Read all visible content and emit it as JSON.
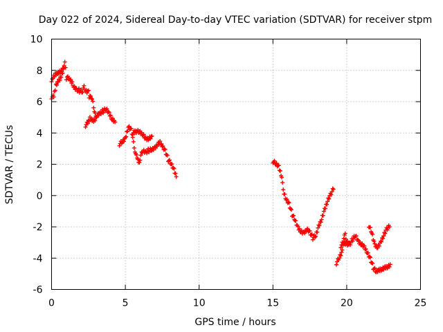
{
  "chart_data": {
    "type": "scatter",
    "title": "Day 022 of 2024, Sidereal Day-to-day VTEC variation (SDTVAR) for receiver stpm",
    "xlabel": "GPS time / hours",
    "ylabel": "SDTVAR / TECUs",
    "xlim": [
      0,
      25
    ],
    "ylim": [
      -6,
      10
    ],
    "xticks": [
      0,
      5,
      10,
      15,
      20,
      25
    ],
    "yticks": [
      -6,
      -4,
      -2,
      0,
      2,
      4,
      6,
      8,
      10
    ],
    "grid": true,
    "marker": "+",
    "color": "#ff0000",
    "series": [
      {
        "name": "segment-1",
        "path": [
          [
            0.0,
            6.3
          ],
          [
            0.15,
            6.3
          ],
          [
            0.3,
            7.0
          ],
          [
            0.45,
            7.3
          ],
          [
            0.6,
            7.5
          ],
          [
            0.75,
            7.9
          ],
          [
            0.9,
            8.5
          ],
          [
            0.95,
            8.3
          ],
          [
            1.0,
            7.4
          ],
          [
            1.1,
            7.5
          ],
          [
            1.25,
            7.4
          ],
          [
            1.4,
            7.2
          ],
          [
            1.5,
            7.0
          ],
          [
            1.7,
            6.8
          ],
          [
            1.9,
            6.7
          ],
          [
            2.1,
            6.6
          ],
          [
            2.2,
            6.9
          ],
          [
            2.3,
            6.7
          ],
          [
            2.45,
            6.6
          ],
          [
            2.5,
            6.8
          ],
          [
            2.55,
            6.2
          ],
          [
            2.6,
            6.5
          ],
          [
            2.7,
            6.2
          ],
          [
            2.8,
            5.9
          ],
          [
            2.9,
            5.4
          ],
          [
            3.0,
            5.0
          ],
          [
            3.1,
            5.2
          ],
          [
            3.3,
            5.3
          ],
          [
            3.5,
            5.4
          ],
          [
            3.7,
            5.5
          ],
          [
            3.9,
            5.2
          ],
          [
            4.1,
            4.9
          ],
          [
            4.3,
            4.7
          ]
        ]
      },
      {
        "name": "segment-2",
        "path": [
          [
            0.0,
            7.4
          ],
          [
            0.1,
            7.5
          ],
          [
            0.25,
            7.7
          ],
          [
            0.4,
            7.8
          ],
          [
            0.55,
            7.9
          ],
          [
            0.7,
            8.0
          ],
          [
            0.85,
            8.3
          ]
        ]
      },
      {
        "name": "segment-3",
        "path": [
          [
            2.3,
            4.5
          ],
          [
            2.45,
            4.6
          ],
          [
            2.6,
            4.9
          ],
          [
            2.75,
            4.8
          ],
          [
            2.9,
            4.8
          ],
          [
            3.05,
            5.0
          ]
        ]
      },
      {
        "name": "segment-4",
        "path": [
          [
            4.6,
            3.3
          ],
          [
            4.8,
            3.4
          ],
          [
            5.0,
            3.6
          ],
          [
            5.2,
            4.4
          ],
          [
            5.4,
            4.2
          ],
          [
            5.5,
            3.8
          ],
          [
            5.6,
            3.0
          ],
          [
            5.7,
            2.8
          ],
          [
            5.8,
            2.4
          ],
          [
            5.9,
            2.0
          ],
          [
            6.0,
            2.3
          ],
          [
            6.1,
            2.7
          ],
          [
            6.2,
            2.9
          ],
          [
            6.4,
            2.8
          ],
          [
            6.6,
            2.9
          ],
          [
            6.8,
            2.9
          ],
          [
            7.0,
            3.0
          ],
          [
            7.2,
            3.3
          ],
          [
            7.35,
            3.4
          ],
          [
            7.5,
            3.2
          ],
          [
            7.7,
            2.9
          ],
          [
            7.9,
            2.3
          ],
          [
            8.1,
            2.0
          ],
          [
            8.3,
            1.6
          ],
          [
            8.45,
            1.2
          ]
        ]
      },
      {
        "name": "segment-5",
        "path": [
          [
            5.5,
            4.0
          ],
          [
            5.8,
            4.1
          ],
          [
            6.0,
            4.0
          ],
          [
            6.2,
            3.9
          ],
          [
            6.4,
            3.6
          ],
          [
            6.6,
            3.7
          ],
          [
            6.8,
            3.8
          ]
        ]
      },
      {
        "name": "segment-6",
        "path": [
          [
            15.0,
            2.2
          ],
          [
            15.2,
            2.0
          ],
          [
            15.4,
            1.8
          ],
          [
            15.6,
            1.2
          ],
          [
            15.7,
            0.3
          ],
          [
            15.9,
            -0.2
          ],
          [
            16.1,
            -0.5
          ],
          [
            16.3,
            -1.2
          ],
          [
            16.5,
            -1.6
          ],
          [
            16.7,
            -2.1
          ],
          [
            16.9,
            -2.3
          ],
          [
            17.1,
            -2.4
          ],
          [
            17.3,
            -2.1
          ],
          [
            17.5,
            -2.3
          ],
          [
            17.7,
            -2.7
          ],
          [
            17.9,
            -2.6
          ],
          [
            18.1,
            -2.0
          ],
          [
            18.3,
            -1.5
          ],
          [
            18.5,
            -0.9
          ],
          [
            18.7,
            -0.3
          ],
          [
            18.9,
            0.1
          ],
          [
            19.1,
            0.4
          ]
        ]
      },
      {
        "name": "segment-7",
        "path": [
          [
            19.3,
            -4.3
          ],
          [
            19.5,
            -4.0
          ],
          [
            19.7,
            -3.6
          ],
          [
            19.8,
            -2.7
          ],
          [
            19.9,
            -2.5
          ],
          [
            20.0,
            -2.9
          ],
          [
            20.2,
            -3.1
          ],
          [
            20.4,
            -2.8
          ],
          [
            20.6,
            -2.6
          ],
          [
            20.8,
            -3.0
          ],
          [
            21.0,
            -3.1
          ],
          [
            21.2,
            -3.3
          ],
          [
            21.4,
            -3.6
          ],
          [
            21.6,
            -4.0
          ],
          [
            21.8,
            -4.6
          ],
          [
            22.0,
            -4.9
          ],
          [
            22.2,
            -4.8
          ],
          [
            22.4,
            -4.7
          ],
          [
            22.6,
            -4.6
          ],
          [
            22.8,
            -4.5
          ],
          [
            22.95,
            -4.4
          ]
        ]
      },
      {
        "name": "segment-8",
        "path": [
          [
            21.5,
            -1.9
          ],
          [
            21.7,
            -2.4
          ],
          [
            21.9,
            -3.2
          ],
          [
            22.1,
            -3.3
          ],
          [
            22.3,
            -3.0
          ],
          [
            22.5,
            -2.5
          ],
          [
            22.7,
            -2.1
          ],
          [
            22.9,
            -2.0
          ]
        ]
      },
      {
        "name": "segment-9",
        "path": [
          [
            19.6,
            -3.2
          ],
          [
            19.8,
            -3.0
          ],
          [
            20.0,
            -3.2
          ],
          [
            20.2,
            -3.0
          ]
        ]
      }
    ]
  }
}
